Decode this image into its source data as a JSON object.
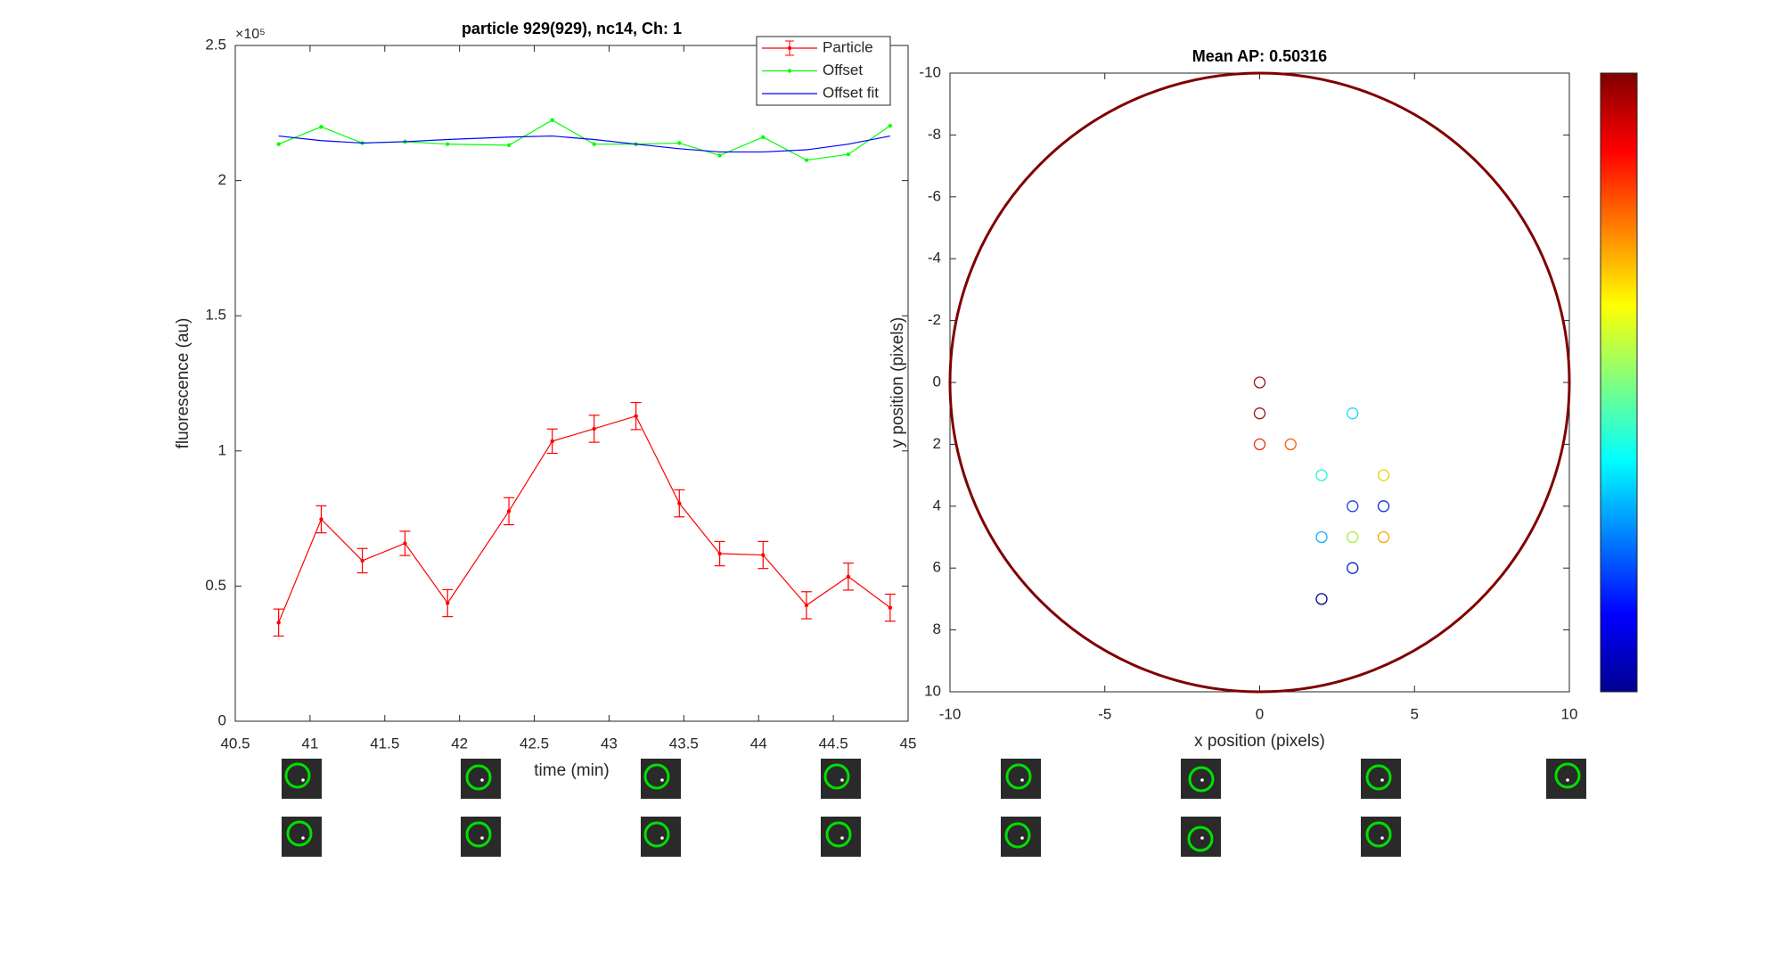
{
  "chart_data": [
    {
      "type": "line",
      "title": "particle 929(929), nc14, Ch: 1",
      "x_label": "time (min)",
      "y_label": "fluorescence (au)",
      "y_exponent_label": "×10⁵",
      "x": [
        40.79,
        41.075,
        41.35,
        41.635,
        41.92,
        42.33,
        42.62,
        42.9,
        43.18,
        43.47,
        43.74,
        44.03,
        44.32,
        44.6,
        44.88
      ],
      "series": [
        {
          "name": "Particle",
          "color": "#ff0000",
          "marker": true,
          "values": [
            0.365,
            0.747,
            0.594,
            0.658,
            0.437,
            0.777,
            1.036,
            1.082,
            1.129,
            0.806,
            0.62,
            0.615,
            0.429,
            0.535,
            0.42
          ],
          "errors": [
            0.05,
            0.05,
            0.045,
            0.045,
            0.05,
            0.05,
            0.045,
            0.05,
            0.05,
            0.05,
            0.045,
            0.05,
            0.05,
            0.05,
            0.05
          ]
        },
        {
          "name": "Offset",
          "color": "#00ff00",
          "marker": true,
          "values": [
            2.135,
            2.199,
            2.139,
            2.144,
            2.135,
            2.131,
            2.224,
            2.135,
            2.135,
            2.139,
            2.093,
            2.161,
            2.076,
            2.097,
            2.203
          ]
        },
        {
          "name": "Offset fit",
          "color": "#0000ff",
          "marker": false,
          "values": [
            2.165,
            2.148,
            2.139,
            2.144,
            2.152,
            2.161,
            2.165,
            2.152,
            2.135,
            2.118,
            2.106,
            2.106,
            2.114,
            2.135,
            2.165
          ]
        }
      ],
      "xlim": [
        40.5,
        45
      ],
      "xticks": [
        40.5,
        41,
        41.5,
        42,
        42.5,
        43,
        43.5,
        44,
        44.5,
        45
      ],
      "ylim": [
        0,
        2.5
      ],
      "yticks": [
        0,
        0.5,
        1,
        1.5,
        2,
        2.5
      ],
      "legend": "northeast"
    },
    {
      "type": "scatter",
      "title": "Mean AP: 0.50316",
      "x_label": "x position (pixels)",
      "y_label": "y position (pixels)",
      "x": [
        0,
        0,
        0,
        1,
        3,
        2,
        4,
        3,
        4,
        2,
        3,
        4,
        3,
        2
      ],
      "values": [
        0,
        1,
        2,
        2,
        1,
        3,
        3,
        4,
        4,
        5,
        5,
        5,
        6,
        7
      ],
      "colors": [
        "#a01010",
        "#a01010",
        "#e83010",
        "#ff5a00",
        "#10e0f0",
        "#20f0e0",
        "#f0d000",
        "#1040e0",
        "#0030d0",
        "#10b0ff",
        "#a0f040",
        "#ffa000",
        "#0020c0",
        "#000090"
      ],
      "boundary_radius": 10,
      "boundary_color": "#800000",
      "xlim": [
        -10,
        10
      ],
      "xticks": [
        -10,
        -5,
        0,
        5,
        10
      ],
      "ylim": [
        -10,
        10
      ],
      "yticks": [
        -10,
        -8,
        -6,
        -4,
        -2,
        0,
        2,
        4,
        6,
        8,
        10
      ],
      "y_reversed": true,
      "colorbar": "jet"
    }
  ]
}
